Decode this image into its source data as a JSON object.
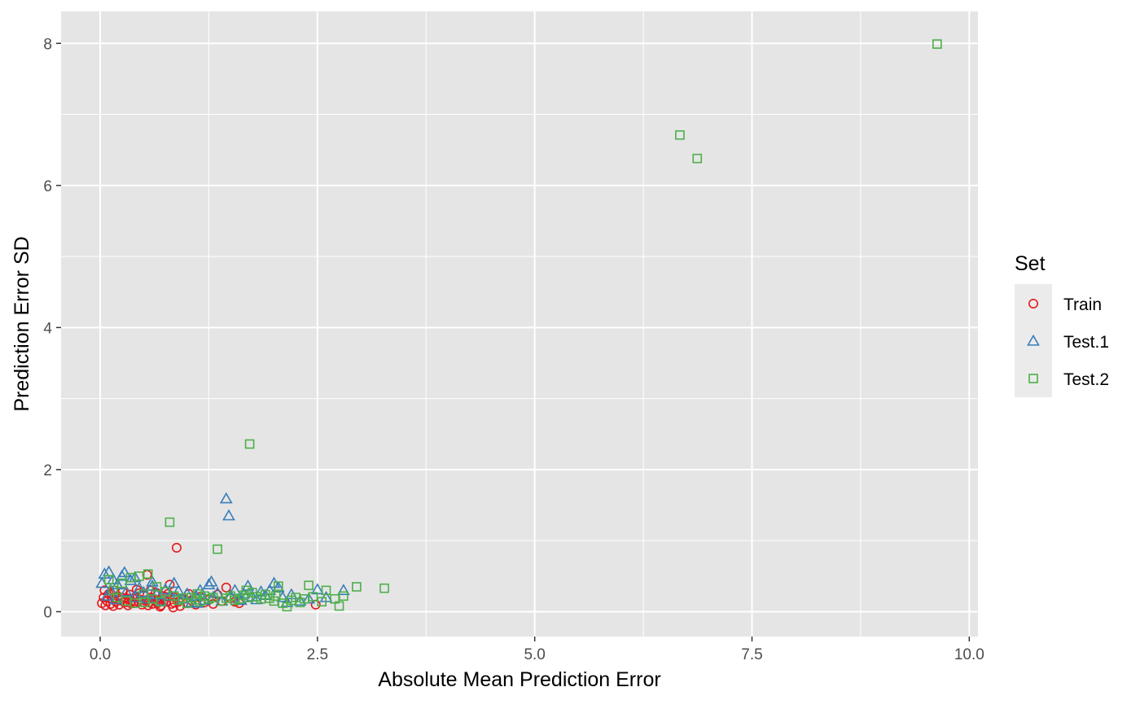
{
  "chart_data": {
    "type": "scatter",
    "title": "",
    "xlabel": "Absolute Mean Prediction Error",
    "ylabel": "Prediction Error SD",
    "xlim": [
      -0.45,
      10.1
    ],
    "ylim": [
      -0.35,
      8.45
    ],
    "x_ticks": [
      0.0,
      2.5,
      5.0,
      7.5,
      10.0
    ],
    "x_tick_labels": [
      "0.0",
      "2.5",
      "5.0",
      "7.5",
      "10.0"
    ],
    "y_ticks": [
      0,
      2,
      4,
      6,
      8
    ],
    "y_tick_labels": [
      "0",
      "2",
      "4",
      "6",
      "8"
    ],
    "grid": true,
    "background": "#e5e5e5",
    "grid_color": "#ffffff",
    "legend": {
      "title": "Set",
      "position": "right"
    },
    "series": [
      {
        "name": "Train",
        "marker": "circle",
        "color": "#e41a1c",
        "points": [
          [
            0.02,
            0.12
          ],
          [
            0.04,
            0.2
          ],
          [
            0.06,
            0.09
          ],
          [
            0.08,
            0.15
          ],
          [
            0.1,
            0.25
          ],
          [
            0.12,
            0.11
          ],
          [
            0.14,
            0.18
          ],
          [
            0.16,
            0.3
          ],
          [
            0.18,
            0.14
          ],
          [
            0.2,
            0.22
          ],
          [
            0.22,
            0.1
          ],
          [
            0.24,
            0.16
          ],
          [
            0.26,
            0.28
          ],
          [
            0.28,
            0.13
          ],
          [
            0.3,
            0.19
          ],
          [
            0.32,
            0.09
          ],
          [
            0.34,
            0.24
          ],
          [
            0.36,
            0.15
          ],
          [
            0.38,
            0.12
          ],
          [
            0.4,
            0.2
          ],
          [
            0.42,
            0.31
          ],
          [
            0.44,
            0.14
          ],
          [
            0.46,
            0.17
          ],
          [
            0.48,
            0.1
          ],
          [
            0.5,
            0.23
          ],
          [
            0.52,
            0.16
          ],
          [
            0.54,
            0.52
          ],
          [
            0.56,
            0.13
          ],
          [
            0.58,
            0.2
          ],
          [
            0.6,
            0.11
          ],
          [
            0.62,
            0.18
          ],
          [
            0.64,
            0.27
          ],
          [
            0.66,
            0.12
          ],
          [
            0.68,
            0.15
          ],
          [
            0.7,
            0.09
          ],
          [
            0.72,
            0.22
          ],
          [
            0.74,
            0.17
          ],
          [
            0.76,
            0.14
          ],
          [
            0.78,
            0.25
          ],
          [
            0.8,
            0.38
          ],
          [
            0.82,
            0.11
          ],
          [
            0.84,
            0.06
          ],
          [
            0.86,
            0.2
          ],
          [
            0.88,
            0.9
          ],
          [
            0.9,
            0.14
          ],
          [
            0.92,
            0.08
          ],
          [
            0.95,
            0.18
          ],
          [
            1.0,
            0.12
          ],
          [
            1.05,
            0.16
          ],
          [
            1.1,
            0.1
          ],
          [
            1.15,
            0.21
          ],
          [
            1.2,
            0.13
          ],
          [
            1.25,
            0.17
          ],
          [
            1.3,
            0.11
          ],
          [
            1.35,
            0.24
          ],
          [
            1.4,
            0.15
          ],
          [
            1.45,
            0.34
          ],
          [
            1.5,
            0.19
          ],
          [
            1.55,
            0.14
          ],
          [
            1.6,
            0.12
          ],
          [
            0.05,
            0.3
          ],
          [
            0.15,
            0.08
          ],
          [
            0.25,
            0.2
          ],
          [
            0.35,
            0.12
          ],
          [
            0.45,
            0.26
          ],
          [
            0.55,
            0.09
          ],
          [
            0.65,
            0.15
          ],
          [
            0.75,
            0.21
          ],
          [
            0.85,
            0.13
          ],
          [
            1.02,
            0.25
          ],
          [
            2.48,
            0.1
          ],
          [
            0.12,
            0.26
          ],
          [
            0.33,
            0.18
          ],
          [
            0.58,
            0.3
          ],
          [
            0.69,
            0.07
          ]
        ]
      },
      {
        "name": "Test.1",
        "marker": "triangle",
        "color": "#377eb8",
        "points": [
          [
            0.02,
            0.4
          ],
          [
            0.05,
            0.53
          ],
          [
            0.08,
            0.22
          ],
          [
            0.1,
            0.56
          ],
          [
            0.12,
            0.3
          ],
          [
            0.15,
            0.45
          ],
          [
            0.18,
            0.17
          ],
          [
            0.2,
            0.38
          ],
          [
            0.25,
            0.5
          ],
          [
            0.28,
            0.55
          ],
          [
            0.3,
            0.28
          ],
          [
            0.35,
            0.44
          ],
          [
            0.4,
            0.2
          ],
          [
            0.45,
            0.33
          ],
          [
            0.5,
            0.27
          ],
          [
            0.55,
            0.18
          ],
          [
            0.6,
            0.36
          ],
          [
            0.65,
            0.24
          ],
          [
            0.7,
            0.15
          ],
          [
            0.75,
            0.31
          ],
          [
            0.8,
            0.22
          ],
          [
            0.85,
            0.4
          ],
          [
            0.9,
            0.29
          ],
          [
            0.95,
            0.18
          ],
          [
            1.0,
            0.25
          ],
          [
            1.05,
            0.13
          ],
          [
            1.1,
            0.22
          ],
          [
            1.15,
            0.3
          ],
          [
            1.2,
            0.16
          ],
          [
            1.25,
            0.38
          ],
          [
            1.28,
            0.42
          ],
          [
            1.3,
            0.2
          ],
          [
            1.35,
            0.26
          ],
          [
            1.4,
            0.15
          ],
          [
            1.45,
            1.59
          ],
          [
            1.48,
            1.35
          ],
          [
            1.5,
            0.22
          ],
          [
            1.55,
            0.3
          ],
          [
            1.6,
            0.18
          ],
          [
            1.65,
            0.25
          ],
          [
            1.7,
            0.36
          ],
          [
            1.75,
            0.21
          ],
          [
            1.8,
            0.17
          ],
          [
            1.85,
            0.28
          ],
          [
            1.9,
            0.23
          ],
          [
            1.95,
            0.3
          ],
          [
            2.0,
            0.4
          ],
          [
            2.05,
            0.34
          ],
          [
            2.1,
            0.2
          ],
          [
            2.2,
            0.24
          ],
          [
            2.3,
            0.15
          ],
          [
            2.4,
            0.18
          ],
          [
            2.5,
            0.31
          ],
          [
            2.6,
            0.2
          ],
          [
            2.8,
            0.3
          ],
          [
            0.4,
            0.48
          ],
          [
            0.6,
            0.42
          ],
          [
            1.12,
            0.12
          ],
          [
            1.62,
            0.16
          ],
          [
            2.15,
            0.13
          ]
        ]
      },
      {
        "name": "Test.2",
        "marker": "square",
        "color": "#4daf4a",
        "points": [
          [
            0.1,
            0.45
          ],
          [
            0.15,
            0.3
          ],
          [
            0.2,
            0.2
          ],
          [
            0.25,
            0.4
          ],
          [
            0.3,
            0.15
          ],
          [
            0.35,
            0.48
          ],
          [
            0.4,
            0.12
          ],
          [
            0.45,
            0.5
          ],
          [
            0.5,
            0.25
          ],
          [
            0.55,
            0.53
          ],
          [
            0.6,
            0.18
          ],
          [
            0.65,
            0.35
          ],
          [
            0.7,
            0.14
          ],
          [
            0.75,
            0.28
          ],
          [
            0.8,
            1.26
          ],
          [
            0.85,
            0.22
          ],
          [
            0.9,
            0.16
          ],
          [
            0.95,
            0.19
          ],
          [
            1.0,
            0.12
          ],
          [
            1.05,
            0.2
          ],
          [
            1.1,
            0.17
          ],
          [
            1.15,
            0.14
          ],
          [
            1.2,
            0.22
          ],
          [
            1.25,
            0.18
          ],
          [
            1.3,
            0.2
          ],
          [
            1.35,
            0.88
          ],
          [
            1.4,
            0.15
          ],
          [
            1.45,
            0.19
          ],
          [
            1.5,
            0.22
          ],
          [
            1.55,
            0.16
          ],
          [
            1.6,
            0.18
          ],
          [
            1.65,
            0.23
          ],
          [
            1.7,
            0.2
          ],
          [
            1.72,
            2.36
          ],
          [
            1.75,
            0.27
          ],
          [
            1.8,
            0.21
          ],
          [
            1.85,
            0.18
          ],
          [
            1.9,
            0.24
          ],
          [
            1.95,
            0.19
          ],
          [
            2.0,
            0.15
          ],
          [
            2.05,
            0.36
          ],
          [
            2.1,
            0.12
          ],
          [
            2.15,
            0.07
          ],
          [
            2.2,
            0.16
          ],
          [
            2.25,
            0.2
          ],
          [
            2.3,
            0.13
          ],
          [
            2.35,
            0.18
          ],
          [
            2.4,
            0.37
          ],
          [
            2.45,
            0.21
          ],
          [
            2.55,
            0.14
          ],
          [
            2.6,
            0.3
          ],
          [
            2.7,
            0.18
          ],
          [
            2.75,
            0.08
          ],
          [
            2.8,
            0.22
          ],
          [
            2.95,
            0.35
          ],
          [
            3.27,
            0.33
          ],
          [
            6.67,
            6.71
          ],
          [
            6.87,
            6.38
          ],
          [
            9.63,
            7.99
          ],
          [
            0.52,
            0.13
          ],
          [
            1.12,
            0.25
          ],
          [
            1.68,
            0.3
          ],
          [
            2.02,
            0.22
          ]
        ]
      }
    ]
  }
}
